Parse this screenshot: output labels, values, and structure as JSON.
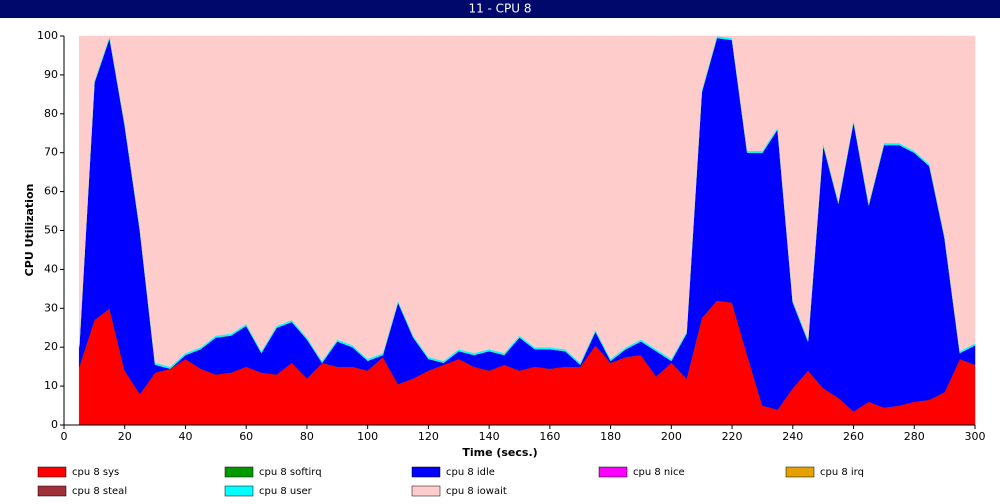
{
  "chart_data": {
    "type": "stacked-area",
    "title": "11 - CPU 8",
    "x_label": "Time (secs.)",
    "y_label": "CPU Utilization",
    "xlim": [
      0,
      300
    ],
    "ylim": [
      0,
      100
    ],
    "xticks": [
      0,
      20,
      40,
      60,
      80,
      100,
      120,
      140,
      160,
      180,
      200,
      220,
      240,
      260,
      280,
      300
    ],
    "yticks": [
      0,
      10,
      20,
      30,
      40,
      50,
      60,
      70,
      80,
      90,
      100
    ],
    "grid": false,
    "x": [
      5,
      10,
      15,
      20,
      25,
      30,
      35,
      40,
      45,
      50,
      55,
      60,
      65,
      70,
      75,
      80,
      85,
      90,
      95,
      100,
      105,
      110,
      115,
      120,
      125,
      130,
      135,
      140,
      145,
      150,
      155,
      160,
      165,
      170,
      175,
      180,
      185,
      190,
      195,
      200,
      205,
      210,
      215,
      220,
      225,
      230,
      235,
      240,
      245,
      250,
      255,
      260,
      265,
      270,
      275,
      280,
      285,
      290,
      295,
      300
    ],
    "series": [
      {
        "name": "cpu 8 sys",
        "color": "#ff0000",
        "values": [
          15,
          27,
          30,
          14,
          8,
          13.5,
          14.5,
          17,
          14.5,
          13,
          13.5,
          15,
          13.5,
          13,
          16,
          12,
          16,
          15,
          15,
          14,
          17.5,
          10.5,
          12,
          14,
          15.5,
          17,
          15,
          14,
          15.5,
          14,
          15,
          14.5,
          15,
          15,
          20.5,
          16,
          17.5,
          18,
          12.5,
          16,
          12,
          27.5,
          32,
          31.5,
          18,
          5,
          4,
          9.5,
          14,
          9.5,
          7,
          3.5,
          6,
          4.5,
          5,
          6,
          6.5,
          8.5,
          17,
          15.5
        ]
      },
      {
        "name": "cpu 8 softirq",
        "color": "#009900",
        "values": [
          0,
          0,
          0,
          0,
          0,
          0,
          0,
          0,
          0,
          0,
          0,
          0,
          0,
          0,
          0,
          0,
          0,
          0,
          0,
          0,
          0,
          0,
          0,
          0,
          0,
          0,
          0,
          0,
          0,
          0,
          0,
          0,
          0,
          0,
          0,
          0,
          0,
          0,
          0,
          0,
          0,
          0,
          0,
          0,
          0,
          0,
          0,
          0,
          0,
          0,
          0,
          0,
          0,
          0,
          0,
          0,
          0,
          0,
          0,
          0
        ]
      },
      {
        "name": "cpu 8 idle",
        "color": "#0000ff",
        "values": [
          5,
          61,
          69.5,
          63,
          42,
          2,
          0,
          1,
          5,
          9.5,
          9.5,
          10.5,
          5,
          12,
          10.5,
          10,
          0,
          6.5,
          5,
          2.5,
          0.5,
          21,
          10.5,
          3,
          0.5,
          2,
          3,
          5,
          2.5,
          8.5,
          4.5,
          5,
          4,
          0.5,
          3.5,
          0.5,
          2,
          3.5,
          6.5,
          0.5,
          11.5,
          58,
          67.5,
          67.5,
          52,
          65,
          72,
          22,
          7.5,
          62.5,
          50,
          74.5,
          50.5,
          67.5,
          67,
          64,
          60,
          39.5,
          1.5,
          5
        ]
      },
      {
        "name": "cpu 8 nice",
        "color": "#ff00ff",
        "values": [
          0,
          0,
          0,
          0,
          0,
          0,
          0,
          0,
          0,
          0,
          0,
          0,
          0,
          0,
          0,
          0,
          0,
          0,
          0,
          0,
          0,
          0,
          0,
          0,
          0,
          0,
          0,
          0,
          0,
          0,
          0,
          0,
          0,
          0,
          0,
          0,
          0,
          0,
          0,
          0,
          0,
          0,
          0,
          0,
          0,
          0,
          0,
          0,
          0,
          0,
          0,
          0,
          0,
          0,
          0,
          0,
          0,
          0,
          0,
          0
        ]
      },
      {
        "name": "cpu 8 irq",
        "color": "#e6a000",
        "values": [
          0,
          0,
          0,
          0,
          0,
          0,
          0,
          0,
          0,
          0,
          0,
          0,
          0,
          0,
          0,
          0,
          0,
          0,
          0,
          0,
          0,
          0,
          0,
          0,
          0,
          0,
          0,
          0,
          0,
          0,
          0,
          0,
          0,
          0,
          0,
          0,
          0,
          0,
          0,
          0,
          0,
          0,
          0,
          0,
          0,
          0,
          0,
          0,
          0,
          0,
          0,
          0,
          0,
          0,
          0,
          0,
          0,
          0,
          0,
          0
        ]
      },
      {
        "name": "cpu 8 steal",
        "color": "#a0303a",
        "values": [
          0,
          0,
          0,
          0,
          0,
          0,
          0,
          0,
          0,
          0,
          0,
          0,
          0,
          0,
          0,
          0,
          0,
          0,
          0,
          0,
          0,
          0,
          0,
          0,
          0,
          0,
          0,
          0,
          0,
          0,
          0,
          0,
          0,
          0,
          0,
          0,
          0,
          0,
          0,
          0,
          0,
          0,
          0,
          0,
          0,
          0,
          0,
          0,
          0,
          0,
          0,
          0,
          0,
          0,
          0,
          0,
          0,
          0,
          0,
          0
        ]
      },
      {
        "name": "cpu 8 user",
        "color": "#00ffff",
        "values": [
          0.5,
          0.5,
          0.5,
          0.5,
          0.5,
          0.5,
          0.5,
          0.5,
          0.5,
          0.5,
          0.5,
          0.5,
          0.5,
          0.5,
          0.5,
          0.5,
          0.5,
          0.5,
          0.5,
          0.5,
          0.5,
          0.5,
          0.5,
          0.5,
          0.5,
          0.5,
          0.5,
          0.5,
          0.5,
          0.5,
          0.5,
          0.5,
          0.5,
          0.5,
          0.5,
          0.5,
          0.5,
          0.5,
          0.5,
          0.5,
          0.5,
          0.5,
          0.5,
          0.5,
          0.5,
          0.5,
          0.5,
          0.5,
          0.5,
          0.5,
          0.5,
          0.5,
          0.5,
          0.5,
          0.5,
          0.5,
          0.5,
          0.5,
          0.5,
          0.5
        ]
      },
      {
        "name": "cpu 8 iowait",
        "color": "#ffcccc",
        "values": [
          79.5,
          11.5,
          0,
          22.5,
          49.5,
          84,
          85,
          81.5,
          80,
          77,
          76.5,
          74,
          81,
          74.5,
          73,
          77.5,
          83.5,
          78,
          79.5,
          83,
          81.5,
          68,
          77,
          82.5,
          83.5,
          80.5,
          81.5,
          80.5,
          81.5,
          77,
          80,
          80,
          80.5,
          84,
          75.5,
          83,
          80,
          78,
          80.5,
          83,
          76,
          14,
          0,
          0.5,
          29.5,
          29.5,
          23.5,
          68,
          78,
          27.5,
          42.5,
          21.5,
          43,
          27.5,
          27.5,
          29.5,
          33,
          51.5,
          81,
          79
        ]
      }
    ]
  }
}
